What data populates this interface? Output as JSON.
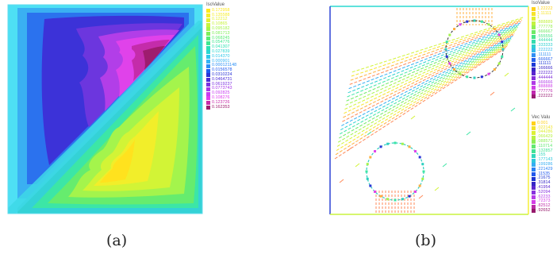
{
  "captions": {
    "a": "(a)",
    "b": "(b)"
  },
  "panel_a": {
    "legend_title": "IsoValue",
    "legend": [
      {
        "label": "0.172958",
        "color": "#ffe91a"
      },
      {
        "label": "0.135588",
        "color": "#f6ee2a"
      },
      {
        "label": "0.12212",
        "color": "#e6f230"
      },
      {
        "label": "0.10865",
        "color": "#c8f43e"
      },
      {
        "label": "0.095182",
        "color": "#a6f44a"
      },
      {
        "label": "0.081713",
        "color": "#7ef05a"
      },
      {
        "label": "0.068245",
        "color": "#5aec74"
      },
      {
        "label": "0.054776",
        "color": "#3ee890"
      },
      {
        "label": "0.041307",
        "color": "#2ee2b2"
      },
      {
        "label": "0.027839",
        "color": "#2ad8d2"
      },
      {
        "label": "0.014370",
        "color": "#2ec8ea"
      },
      {
        "label": "0.000901",
        "color": "#34b4f6"
      },
      {
        "label": "0.000121148",
        "color": "#2a8ef6"
      },
      {
        "label": "0.0156578",
        "color": "#1e5af0"
      },
      {
        "label": "0.0310224",
        "color": "#2a34d6"
      },
      {
        "label": "0.0464731",
        "color": "#4a2ad8"
      },
      {
        "label": "0.0619237",
        "color": "#7a30e0"
      },
      {
        "label": "0.0773743",
        "color": "#a636ea"
      },
      {
        "label": "0.092825",
        "color": "#c83cf0"
      },
      {
        "label": "0.108276",
        "color": "#e040ee"
      },
      {
        "label": "0.123726",
        "color": "#c82aa8"
      },
      {
        "label": "0.162353",
        "color": "#9e1c6e"
      }
    ]
  },
  "panel_b": {
    "legend1_title": "IsoValue",
    "legend1": [
      {
        "label": "1.22222",
        "color": "#ffd21c"
      },
      {
        "label": "1.11111",
        "color": "#f6e42a"
      },
      {
        "label": "1",
        "color": "#e2f030"
      },
      {
        "label": ".888889",
        "color": "#c2f240"
      },
      {
        "label": ".777778",
        "color": "#98f052"
      },
      {
        "label": ".666667",
        "color": "#6eea66"
      },
      {
        "label": ".555556",
        "color": "#48e488"
      },
      {
        "label": ".444444",
        "color": "#34dcae"
      },
      {
        "label": ".333333",
        "color": "#2ed0d0"
      },
      {
        "label": ".222222",
        "color": "#34baec"
      },
      {
        "label": ".111111",
        "color": "#2f8ef4"
      },
      {
        "label": ".666667",
        "color": "#2460ee"
      },
      {
        "label": ".111111",
        "color": "#1e3ad6"
      },
      {
        "label": ".166666",
        "color": "#3826c8"
      },
      {
        "label": ".222222",
        "color": "#5a26d0"
      },
      {
        "label": ".444444",
        "color": "#8430dc"
      },
      {
        "label": ".666666",
        "color": "#b03ae6"
      },
      {
        "label": ".888888",
        "color": "#d040ea"
      },
      {
        "label": ".777776",
        "color": "#c22ab0"
      },
      {
        "label": ".222222",
        "color": "#9a1c74"
      }
    ],
    "legend2_title": "Vec Valu",
    "legend2": [
      {
        "label": "0.001",
        "color": "#ffd21c"
      },
      {
        "label": ".022143",
        "color": "#f2e42c"
      },
      {
        "label": ".044286",
        "color": "#dcf034"
      },
      {
        "label": ".066429",
        "color": "#b8f244"
      },
      {
        "label": ".088571",
        "color": "#8eee56"
      },
      {
        "label": ".110714",
        "color": "#62e872"
      },
      {
        "label": ".132857",
        "color": "#40e296"
      },
      {
        "label": ".155",
        "color": "#30d8bc"
      },
      {
        "label": ".177143",
        "color": "#2ec8dc"
      },
      {
        "label": ".199286",
        "color": "#36aef2"
      },
      {
        "label": ".221429",
        "color": "#2a82f4"
      },
      {
        "label": ".11535",
        "color": "#2258ec"
      },
      {
        "label": ".21675",
        "color": "#1e36d2"
      },
      {
        "label": ".31814",
        "color": "#3626c6"
      },
      {
        "label": ".41954",
        "color": "#5c28d0"
      },
      {
        "label": ".52094",
        "color": "#8832de"
      },
      {
        "label": ".62233",
        "color": "#b63ce8"
      },
      {
        "label": ".72373",
        "color": "#d43ee6"
      },
      {
        "label": ".82512",
        "color": "#bc2aa6"
      },
      {
        "label": ".92652",
        "color": "#961a6c"
      }
    ]
  }
}
